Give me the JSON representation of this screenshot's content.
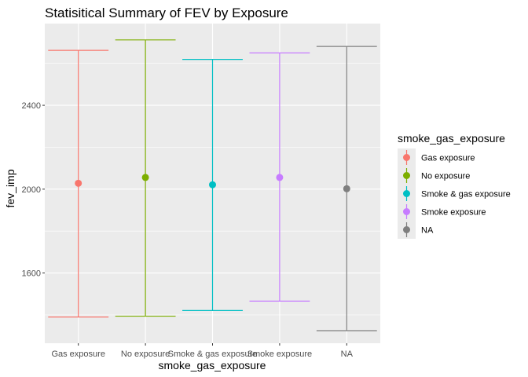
{
  "chart_data": {
    "type": "errorbar",
    "title": "Statisitical Summary of FEV by Exposure",
    "xlabel": "smoke_gas_exposure",
    "ylabel": "fev_imp",
    "categories": [
      "Gas exposure",
      "No exposure",
      "Smoke & gas exposure",
      "Smoke exposure",
      "NA"
    ],
    "series": [
      {
        "name": "Gas exposure",
        "mean": 2028,
        "ymin": 1390,
        "ymax": 2662,
        "color": "#F8766D"
      },
      {
        "name": "No exposure",
        "mean": 2056,
        "ymin": 1394,
        "ymax": 2712,
        "color": "#7CAE00"
      },
      {
        "name": "Smoke & gas exposure",
        "mean": 2021,
        "ymin": 1421,
        "ymax": 2619,
        "color": "#00BFC4"
      },
      {
        "name": "Smoke exposure",
        "mean": 2056,
        "ymin": 1466,
        "ymax": 2650,
        "color": "#C77CFF"
      },
      {
        "name": "NA",
        "mean": 2002,
        "ymin": 1325,
        "ymax": 2681,
        "color": "#7F7F7F"
      }
    ],
    "yticks": [
      1600,
      2000,
      2400
    ],
    "ylim": [
      1265,
      2790
    ],
    "grid": true,
    "legend": {
      "title": "smoke_gas_exposure",
      "position": "right"
    },
    "panel_background": "#EBEBEB",
    "gridline_color": "#FFFFFF"
  }
}
